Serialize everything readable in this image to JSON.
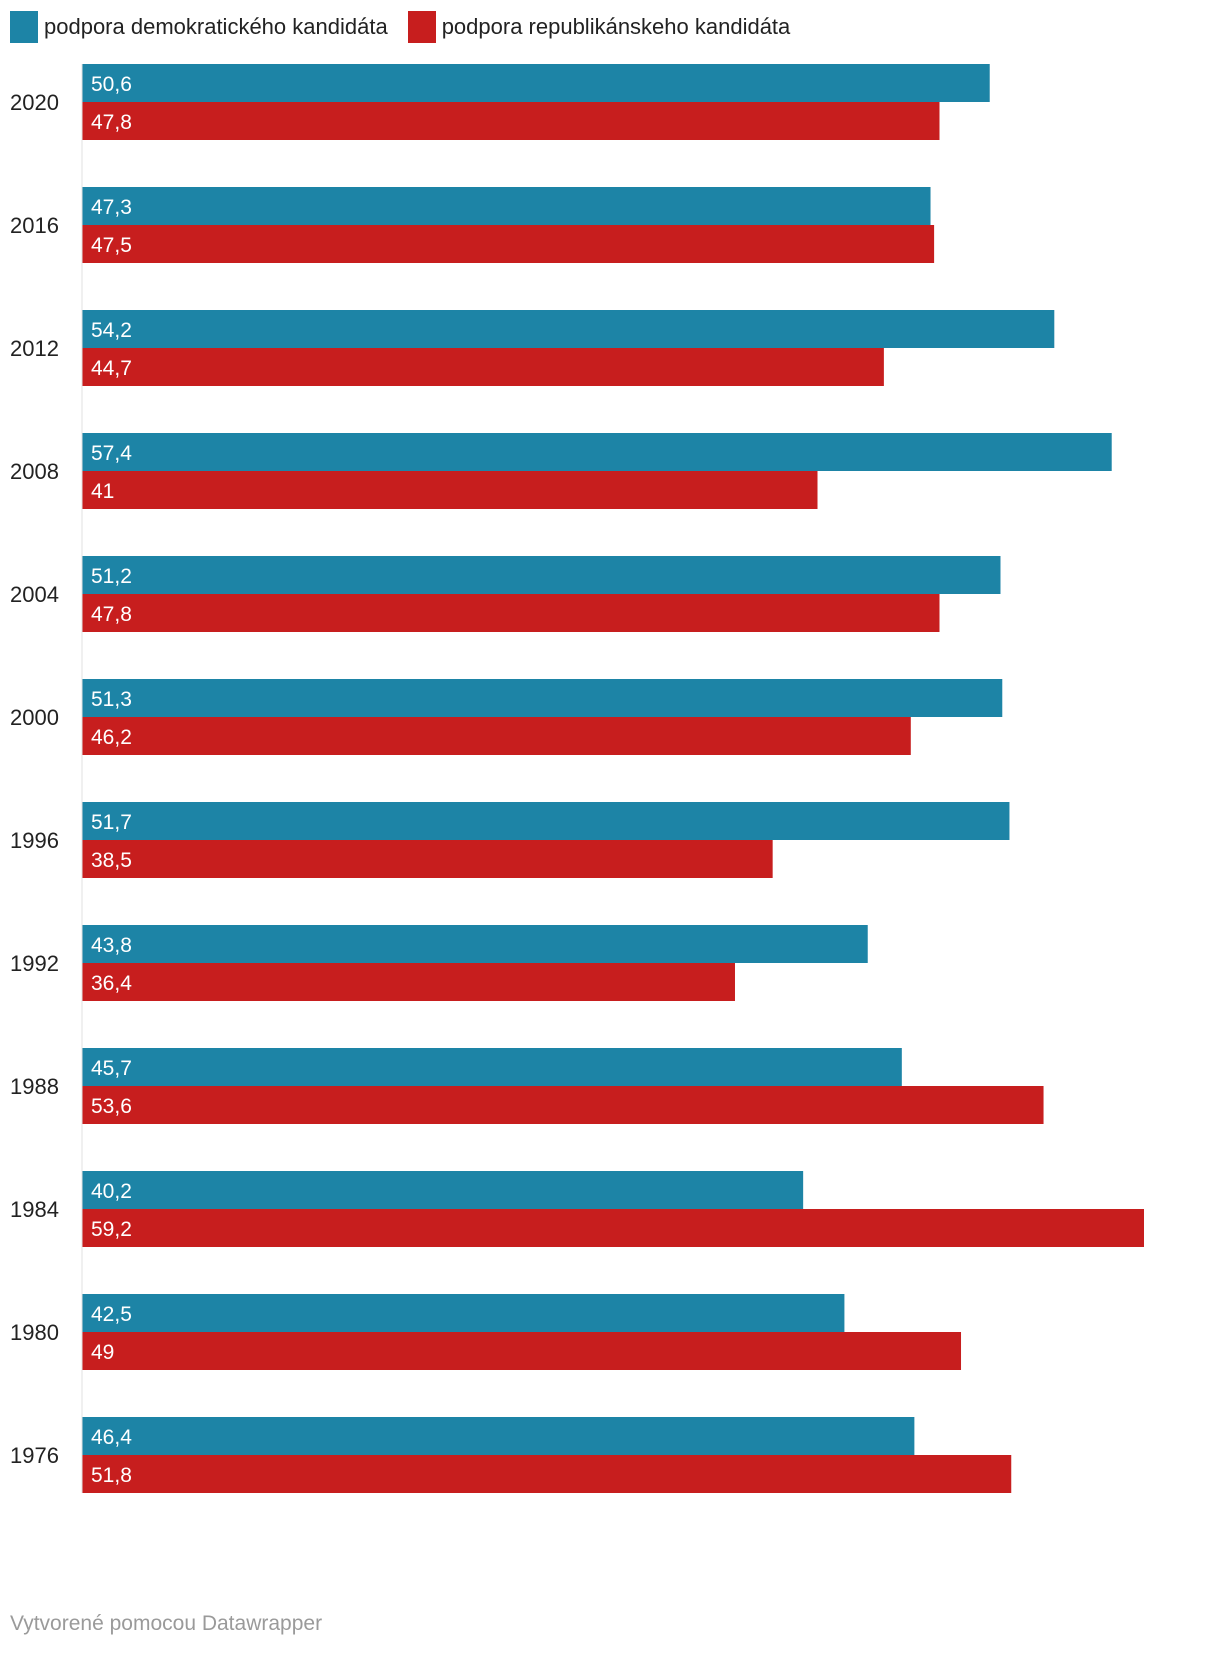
{
  "chart_data": {
    "type": "bar",
    "orientation": "horizontal",
    "categories": [
      "2020",
      "2016",
      "2012",
      "2008",
      "2004",
      "2000",
      "1996",
      "1992",
      "1988",
      "1984",
      "1980",
      "1976"
    ],
    "series": [
      {
        "name": "podpora demokratického kandidáta",
        "color": "#1d84a6",
        "values": [
          50.6,
          47.3,
          54.2,
          57.4,
          51.2,
          51.3,
          51.7,
          43.8,
          45.7,
          40.2,
          42.5,
          46.4
        ],
        "labels": [
          "50,6",
          "47,3",
          "54,2",
          "57,4",
          "51,2",
          "51,3",
          "51,7",
          "43,8",
          "45,7",
          "40,2",
          "42,5",
          "46,4"
        ]
      },
      {
        "name": "podpora republikánskeho kandidáta",
        "color": "#c71e1e",
        "values": [
          47.8,
          47.5,
          44.7,
          41,
          47.8,
          46.2,
          38.5,
          36.4,
          53.6,
          59.2,
          49,
          51.8
        ],
        "labels": [
          "47,8",
          "47,5",
          "44,7",
          "41",
          "47,8",
          "46,2",
          "38,5",
          "36,4",
          "53,6",
          "59,2",
          "49",
          "51,8"
        ]
      }
    ],
    "xlim": [
      0,
      59.2
    ],
    "legend_position": "top-left",
    "grid": false
  },
  "footer": {
    "credit": "Vytvorené pomocou Datawrapper"
  }
}
